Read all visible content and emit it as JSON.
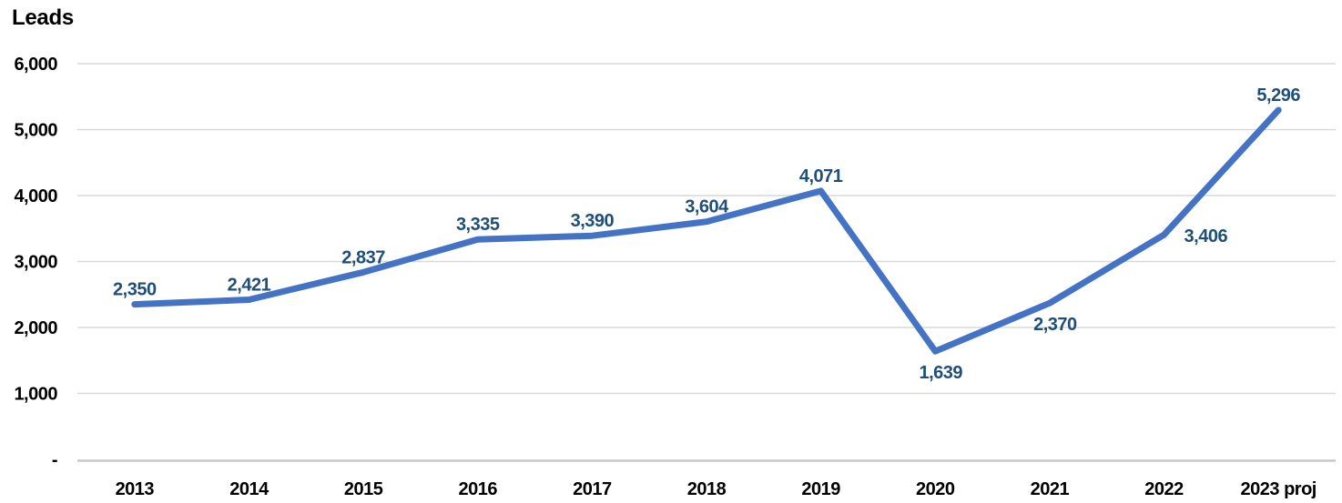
{
  "chart_data": {
    "type": "line",
    "title": "Leads",
    "xlabel": "",
    "ylabel": "",
    "categories": [
      "2013",
      "2014",
      "2015",
      "2016",
      "2017",
      "2018",
      "2019",
      "2020",
      "2021",
      "2022",
      "2023 proj"
    ],
    "series": [
      {
        "name": "Leads",
        "values": [
          2350,
          2421,
          2837,
          3335,
          3390,
          3604,
          4071,
          1639,
          2370,
          3406,
          5296
        ],
        "value_labels": [
          "2,350",
          "2,421",
          "2,837",
          "3,335",
          "3,390",
          "3,604",
          "4,071",
          "1,639",
          "2,370",
          "3,406",
          "5,296"
        ],
        "label_positions": [
          "above",
          "above",
          "above",
          "above",
          "above",
          "above",
          "above",
          "below",
          "below",
          "right",
          "above"
        ]
      }
    ],
    "ylim": [
      0,
      6000
    ],
    "y_ticks": [
      {
        "value": 6000,
        "label": "6,000"
      },
      {
        "value": 5000,
        "label": "5,000"
      },
      {
        "value": 4000,
        "label": "4,000"
      },
      {
        "value": 3000,
        "label": "3,000"
      },
      {
        "value": 2000,
        "label": "2,000"
      },
      {
        "value": 1000,
        "label": "1,000"
      },
      {
        "value": 0,
        "label": "-"
      }
    ],
    "grid": true,
    "legend_position": "none",
    "colors": {
      "line": "#4472C4",
      "data_label": "#1F4E79",
      "gridline": "#D9D9D9",
      "axis_line": "#C9C9C9",
      "tick_label": "#000000",
      "title": "#000000"
    }
  }
}
